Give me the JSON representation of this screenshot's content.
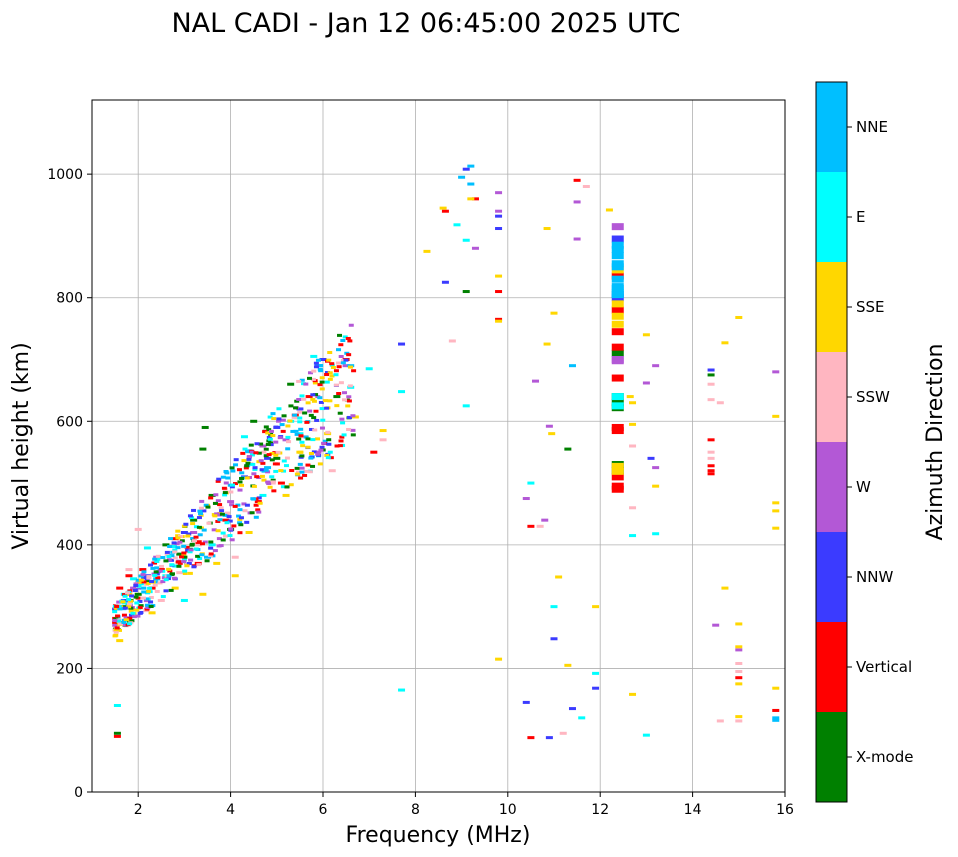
{
  "chart_data": {
    "type": "scatter",
    "title": "NAL CADI - Jan 12 06:45:00 2025 UTC",
    "xlabel": "Frequency (MHz)",
    "ylabel": "Virtual height (km)",
    "xlim": [
      1,
      16
    ],
    "ylim": [
      0,
      1120
    ],
    "xticks": [
      2,
      4,
      6,
      8,
      10,
      12,
      14,
      16
    ],
    "yticks": [
      0,
      200,
      400,
      600,
      800,
      1000
    ],
    "grid": true,
    "colorbar": {
      "label": "Azimuth Direction",
      "categories": [
        "X-mode",
        "Vertical",
        "NNW",
        "W",
        "SSW",
        "SSE",
        "E",
        "NNE"
      ],
      "colors": [
        "#008000",
        "#ff0000",
        "#3b3bff",
        "#b358d6",
        "#ffb6c1",
        "#ffd700",
        "#00ffff",
        "#00bfff"
      ]
    },
    "series": [
      {
        "name": "X-mode",
        "points": [
          [
            1.55,
            95
          ],
          [
            1.7,
            300
          ],
          [
            2.0,
            320
          ],
          [
            2.6,
            400
          ],
          [
            2.9,
            385
          ],
          [
            3.2,
            440
          ],
          [
            3.45,
            590
          ],
          [
            3.4,
            555
          ],
          [
            3.6,
            480
          ],
          [
            4.0,
            425
          ],
          [
            4.5,
            600
          ],
          [
            5.0,
            540
          ],
          [
            5.3,
            660
          ],
          [
            6.3,
            640
          ],
          [
            9.1,
            810
          ],
          [
            11.3,
            555
          ],
          [
            12.38,
            530
          ],
          [
            12.38,
            520
          ],
          [
            12.38,
            640
          ],
          [
            12.38,
            630
          ],
          [
            12.38,
            622
          ],
          [
            12.38,
            710
          ],
          [
            14.4,
            675
          ]
        ]
      },
      {
        "name": "Vertical",
        "points": [
          [
            1.55,
            90
          ],
          [
            1.6,
            330
          ],
          [
            1.8,
            350
          ],
          [
            2.1,
            360
          ],
          [
            2.3,
            330
          ],
          [
            2.5,
            360
          ],
          [
            2.8,
            410
          ],
          [
            3.1,
            390
          ],
          [
            3.3,
            370
          ],
          [
            3.9,
            440
          ],
          [
            4.6,
            470
          ],
          [
            5.1,
            500
          ],
          [
            5.4,
            610
          ],
          [
            5.7,
            640
          ],
          [
            6.5,
            700
          ],
          [
            7.1,
            550
          ],
          [
            8.65,
            940
          ],
          [
            9.3,
            960
          ],
          [
            9.8,
            810
          ],
          [
            9.8,
            765
          ],
          [
            10.5,
            430
          ],
          [
            10.5,
            88
          ],
          [
            11.5,
            990
          ],
          [
            12.38,
            835
          ],
          [
            12.38,
            780
          ],
          [
            12.38,
            745
          ],
          [
            12.38,
            720
          ],
          [
            12.38,
            670
          ],
          [
            12.38,
            590
          ],
          [
            12.38,
            585
          ],
          [
            12.38,
            510
          ],
          [
            12.38,
            490
          ],
          [
            12.38,
            495
          ],
          [
            14.4,
            570
          ],
          [
            14.4,
            528
          ],
          [
            14.4,
            520
          ],
          [
            14.4,
            515
          ],
          [
            15.0,
            185
          ],
          [
            15.8,
            132
          ]
        ]
      },
      {
        "name": "NNW",
        "points": [
          [
            1.7,
            310
          ],
          [
            2.2,
            350
          ],
          [
            2.7,
            375
          ],
          [
            3.0,
            420
          ],
          [
            3.4,
            455
          ],
          [
            4.3,
            510
          ],
          [
            4.8,
            540
          ],
          [
            5.0,
            590
          ],
          [
            5.5,
            620
          ],
          [
            6.0,
            700
          ],
          [
            7.7,
            725
          ],
          [
            8.65,
            825
          ],
          [
            9.1,
            1008
          ],
          [
            9.8,
            932
          ],
          [
            9.8,
            912
          ],
          [
            10.4,
            145
          ],
          [
            10.9,
            88
          ],
          [
            11.0,
            248
          ],
          [
            11.4,
            135
          ],
          [
            11.9,
            168
          ],
          [
            12.38,
            895
          ],
          [
            12.38,
            805
          ],
          [
            12.38,
            800
          ],
          [
            13.1,
            540
          ],
          [
            14.4,
            683
          ]
        ]
      },
      {
        "name": "W",
        "points": [
          [
            1.9,
            330
          ],
          [
            2.4,
            380
          ],
          [
            3.2,
            420
          ],
          [
            4.0,
            470
          ],
          [
            4.7,
            560
          ],
          [
            5.2,
            570
          ],
          [
            6.5,
            690
          ],
          [
            9.3,
            880
          ],
          [
            9.8,
            970
          ],
          [
            9.8,
            940
          ],
          [
            10.4,
            475
          ],
          [
            10.6,
            665
          ],
          [
            10.8,
            440
          ],
          [
            10.9,
            592
          ],
          [
            11.5,
            955
          ],
          [
            11.5,
            895
          ],
          [
            12.38,
            915
          ],
          [
            12.38,
            700
          ],
          [
            12.38,
            698
          ],
          [
            13.0,
            662
          ],
          [
            13.2,
            690
          ],
          [
            13.2,
            525
          ],
          [
            14.5,
            270
          ],
          [
            15.0,
            230
          ],
          [
            15.8,
            680
          ]
        ]
      },
      {
        "name": "SSW",
        "points": [
          [
            1.8,
            360
          ],
          [
            2.0,
            425
          ],
          [
            2.5,
            310
          ],
          [
            2.9,
            355
          ],
          [
            3.3,
            400
          ],
          [
            4.1,
            380
          ],
          [
            4.9,
            500
          ],
          [
            5.6,
            575
          ],
          [
            6.2,
            520
          ],
          [
            7.3,
            570
          ],
          [
            8.8,
            730
          ],
          [
            10.7,
            430
          ],
          [
            11.2,
            95
          ],
          [
            11.7,
            980
          ],
          [
            12.7,
            460
          ],
          [
            12.7,
            560
          ],
          [
            14.4,
            660
          ],
          [
            14.4,
            635
          ],
          [
            14.4,
            550
          ],
          [
            14.4,
            540
          ],
          [
            14.6,
            630
          ],
          [
            14.6,
            115
          ],
          [
            15.0,
            208
          ],
          [
            15.0,
            195
          ],
          [
            15.0,
            115
          ]
        ]
      },
      {
        "name": "SSE",
        "points": [
          [
            1.6,
            245
          ],
          [
            2.3,
            290
          ],
          [
            2.8,
            330
          ],
          [
            3.4,
            320
          ],
          [
            3.7,
            370
          ],
          [
            4.1,
            350
          ],
          [
            4.4,
            420
          ],
          [
            5.2,
            480
          ],
          [
            5.5,
            550
          ],
          [
            6.1,
            580
          ],
          [
            6.7,
            607
          ],
          [
            7.3,
            585
          ],
          [
            8.25,
            875
          ],
          [
            8.6,
            945
          ],
          [
            9.2,
            960
          ],
          [
            9.8,
            215
          ],
          [
            9.8,
            835
          ],
          [
            9.8,
            762
          ],
          [
            10.85,
            912
          ],
          [
            10.85,
            725
          ],
          [
            10.95,
            580
          ],
          [
            11.0,
            775
          ],
          [
            11.1,
            348
          ],
          [
            11.3,
            205
          ],
          [
            11.9,
            300
          ],
          [
            12.2,
            942
          ],
          [
            12.38,
            845
          ],
          [
            12.38,
            790
          ],
          [
            12.38,
            770
          ],
          [
            12.38,
            757
          ],
          [
            12.38,
            527
          ],
          [
            12.38,
            519
          ],
          [
            12.65,
            640
          ],
          [
            12.7,
            630
          ],
          [
            12.7,
            595
          ],
          [
            12.7,
            158
          ],
          [
            13.0,
            740
          ],
          [
            13.2,
            495
          ],
          [
            14.7,
            330
          ],
          [
            14.7,
            727
          ],
          [
            15.0,
            768
          ],
          [
            15.0,
            272
          ],
          [
            15.0,
            235
          ],
          [
            15.0,
            175
          ],
          [
            15.0,
            122
          ],
          [
            15.8,
            608
          ],
          [
            15.8,
            468
          ],
          [
            15.8,
            455
          ],
          [
            15.8,
            427
          ],
          [
            15.8,
            168
          ]
        ]
      },
      {
        "name": "E",
        "points": [
          [
            1.55,
            140
          ],
          [
            1.7,
            320
          ],
          [
            1.9,
            345
          ],
          [
            2.2,
            395
          ],
          [
            2.6,
            350
          ],
          [
            3.0,
            310
          ],
          [
            3.6,
            400
          ],
          [
            4.3,
            575
          ],
          [
            4.7,
            480
          ],
          [
            5.3,
            600
          ],
          [
            5.8,
            705
          ],
          [
            6.6,
            655
          ],
          [
            7.0,
            685
          ],
          [
            7.7,
            648
          ],
          [
            7.7,
            165
          ],
          [
            8.9,
            918
          ],
          [
            9.1,
            893
          ],
          [
            9.1,
            625
          ],
          [
            10.5,
            500
          ],
          [
            11.0,
            300
          ],
          [
            11.6,
            120
          ],
          [
            11.9,
            192
          ],
          [
            12.38,
            640
          ],
          [
            12.38,
            625
          ],
          [
            12.7,
            415
          ],
          [
            13.2,
            418
          ],
          [
            13.0,
            92
          ]
        ]
      },
      {
        "name": "NNE",
        "points": [
          [
            1.8,
            305
          ],
          [
            2.1,
            330
          ],
          [
            2.4,
            345
          ],
          [
            3.5,
            380
          ],
          [
            4.8,
            525
          ],
          [
            5.9,
            690
          ],
          [
            6.6,
            690
          ],
          [
            9.0,
            995
          ],
          [
            9.2,
            1013
          ],
          [
            9.2,
            984
          ],
          [
            11.4,
            690
          ],
          [
            12.38,
            885
          ],
          [
            12.38,
            878
          ],
          [
            12.38,
            868
          ],
          [
            12.38,
            855
          ],
          [
            12.38,
            850
          ],
          [
            12.38,
            830
          ],
          [
            12.38,
            818
          ],
          [
            12.38,
            815
          ],
          [
            12.38,
            808
          ],
          [
            12.38,
            805
          ],
          [
            15.8,
            120
          ],
          [
            15.8,
            116
          ]
        ]
      }
    ]
  }
}
